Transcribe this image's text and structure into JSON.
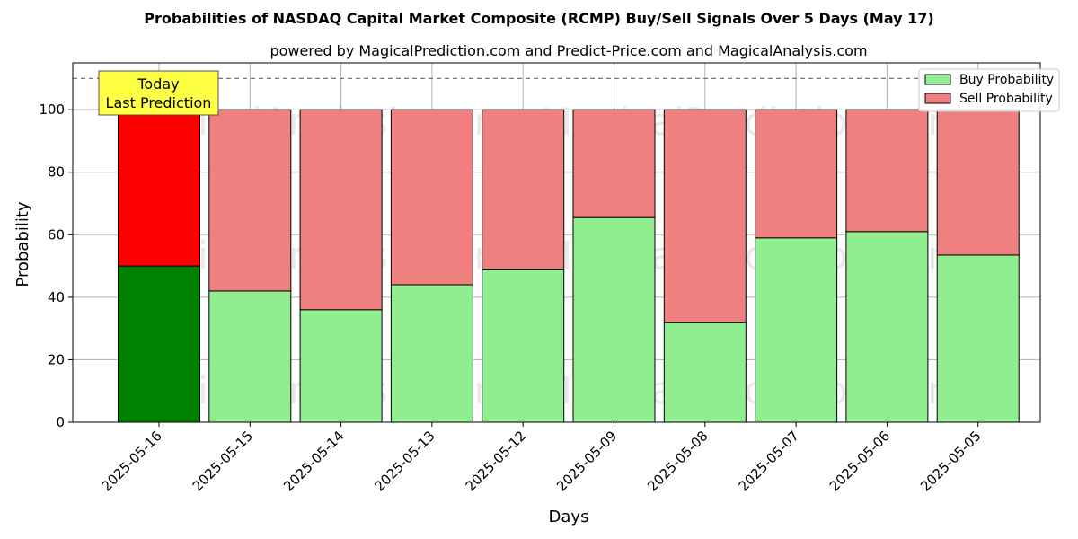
{
  "chart_data": {
    "type": "bar",
    "stacked": true,
    "title": "Probabilities of NASDAQ Capital Market Composite (RCMP) Buy/Sell Signals Over 5 Days (May 17)",
    "subtitle": "powered by MagicalPrediction.com and Predict-Price.com and MagicalAnalysis.com",
    "xlabel": "Days",
    "ylabel": "Probability",
    "ylim": [
      0,
      115
    ],
    "yticks": [
      0,
      20,
      40,
      60,
      80,
      100
    ],
    "grid": true,
    "legend_position": "top-right",
    "reference_line": 110,
    "categories": [
      "2025-05-16",
      "2025-05-15",
      "2025-05-14",
      "2025-05-13",
      "2025-05-12",
      "2025-05-09",
      "2025-05-08",
      "2025-05-07",
      "2025-05-06",
      "2025-05-05"
    ],
    "series": [
      {
        "name": "Buy Probability",
        "values": [
          50,
          42,
          36,
          44,
          49,
          65.5,
          32,
          59,
          61,
          53.5
        ]
      },
      {
        "name": "Sell Probability",
        "values": [
          50,
          58,
          64,
          56,
          51,
          34.5,
          68,
          41,
          39,
          46.5
        ]
      }
    ],
    "annotation": {
      "line1": "Today",
      "line2": "Last Prediction"
    },
    "watermarks": [
      "MagicalAnalysis.com",
      "MagicalPrediction.com"
    ],
    "colors": {
      "buy": "#90EE90",
      "sell": "#F08080",
      "buy_today": "#008000",
      "sell_today": "#FF0000",
      "annotation_bg": "#FFFF44"
    }
  }
}
